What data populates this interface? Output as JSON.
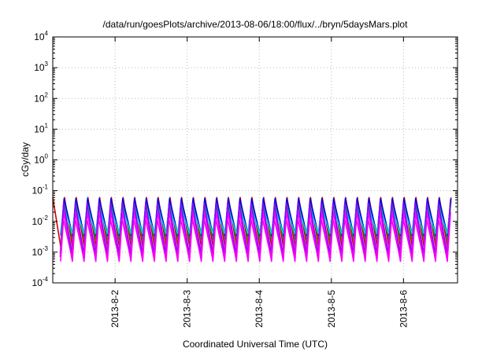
{
  "chart_data": {
    "type": "line",
    "title": "/data/run/goesPlots/archive/2013-08-06/18:00/flux/../bryn/5daysMars.plot",
    "xlabel": "Coordinated Universal Time (UTC)",
    "ylabel": "cGy/day",
    "yscale": "log",
    "ylim": [
      0.0001,
      10000
    ],
    "xlim": [
      "2013-08-01T03:15",
      "2013-08-06T18:00"
    ],
    "y_ticks": [
      {
        "base": "10",
        "exp": "-4"
      },
      {
        "base": "10",
        "exp": "-3"
      },
      {
        "base": "10",
        "exp": "-2"
      },
      {
        "base": "10",
        "exp": "-1"
      },
      {
        "base": "10",
        "exp": "0"
      },
      {
        "base": "10",
        "exp": "1"
      },
      {
        "base": "10",
        "exp": "2"
      },
      {
        "base": "10",
        "exp": "3"
      },
      {
        "base": "10",
        "exp": "4"
      }
    ],
    "x_ticks": [
      "2013-8-2",
      "2013-8-3",
      "2013-8-4",
      "2013-8-5",
      "2013-8-6"
    ],
    "grid": true,
    "legend": "none",
    "oscillation_period_hours": 3.9,
    "series": [
      {
        "color": "#cc0000",
        "peak": 0.06,
        "trough": 0.0012
      },
      {
        "color": "#00aa00",
        "peak": 0.045,
        "trough": 0.0025
      },
      {
        "color": "#0000ee",
        "peak": 0.055,
        "trough": 0.0035
      },
      {
        "color": "#ff00ff",
        "peak": 0.02,
        "trough": 0.0005
      },
      {
        "color": "#00cccc",
        "peak": 0.03,
        "trough": 0.004
      },
      {
        "color": "#8800ff",
        "peak": 0.04,
        "trough": 0.0009
      },
      {
        "color": "#ee00ee",
        "peak": 0.012,
        "trough": 0.0007
      }
    ]
  }
}
